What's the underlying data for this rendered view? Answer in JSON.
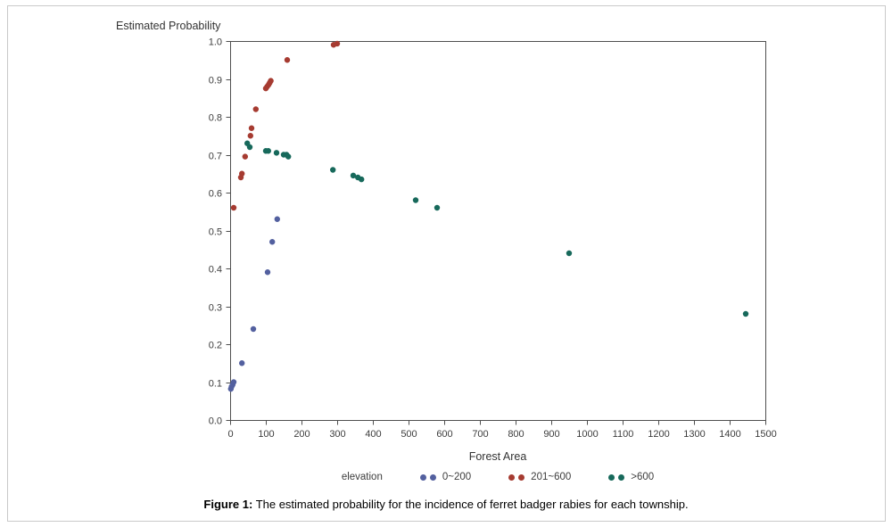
{
  "figure": {
    "caption_prefix": "Figure 1:",
    "caption_text": " The estimated probability for the incidence of ferret badger rabies for each township."
  },
  "chart_data": {
    "type": "scatter",
    "title": "",
    "ylabel": "Estimated Probability",
    "xlabel": "Forest Area",
    "xlim": [
      0,
      1500
    ],
    "ylim": [
      0.0,
      1.0
    ],
    "x_ticks": [
      0,
      100,
      200,
      300,
      400,
      500,
      600,
      700,
      800,
      900,
      1000,
      1100,
      1200,
      1300,
      1400,
      1500
    ],
    "y_tick_labels": [
      "0.0",
      "0.1",
      "0.2",
      "0.3",
      "0.4",
      "0.5",
      "0.6",
      "0.7",
      "0.8",
      "0.9",
      "1.0"
    ],
    "grid": false,
    "frame_color": "#4f4f4f",
    "legend_title": "elevation",
    "legend_position": "bottom",
    "series": [
      {
        "name": "0~200",
        "color": "#53609F",
        "points": [
          [
            2,
            0.082
          ],
          [
            4,
            0.088
          ],
          [
            7,
            0.093
          ],
          [
            10,
            0.1
          ],
          [
            33,
            0.15
          ],
          [
            65,
            0.24
          ],
          [
            105,
            0.39
          ],
          [
            118,
            0.47
          ],
          [
            132,
            0.53
          ]
        ]
      },
      {
        "name": "201~600",
        "color": "#A63B31",
        "points": [
          [
            10,
            0.56
          ],
          [
            30,
            0.64
          ],
          [
            33,
            0.65
          ],
          [
            42,
            0.695
          ],
          [
            57,
            0.75
          ],
          [
            60,
            0.77
          ],
          [
            72,
            0.82
          ],
          [
            100,
            0.875
          ],
          [
            104,
            0.88
          ],
          [
            108,
            0.885
          ],
          [
            111,
            0.89
          ],
          [
            114,
            0.895
          ],
          [
            160,
            0.95
          ],
          [
            290,
            0.99
          ],
          [
            300,
            0.993
          ]
        ]
      },
      {
        "name": ">600",
        "color": "#17695B",
        "points": [
          [
            48,
            0.73
          ],
          [
            55,
            0.72
          ],
          [
            100,
            0.71
          ],
          [
            107,
            0.71
          ],
          [
            130,
            0.705
          ],
          [
            150,
            0.7
          ],
          [
            158,
            0.7
          ],
          [
            163,
            0.695
          ],
          [
            288,
            0.66
          ],
          [
            345,
            0.645
          ],
          [
            358,
            0.64
          ],
          [
            368,
            0.635
          ],
          [
            520,
            0.58
          ],
          [
            580,
            0.56
          ],
          [
            950,
            0.44
          ],
          [
            1445,
            0.28
          ]
        ]
      }
    ]
  }
}
